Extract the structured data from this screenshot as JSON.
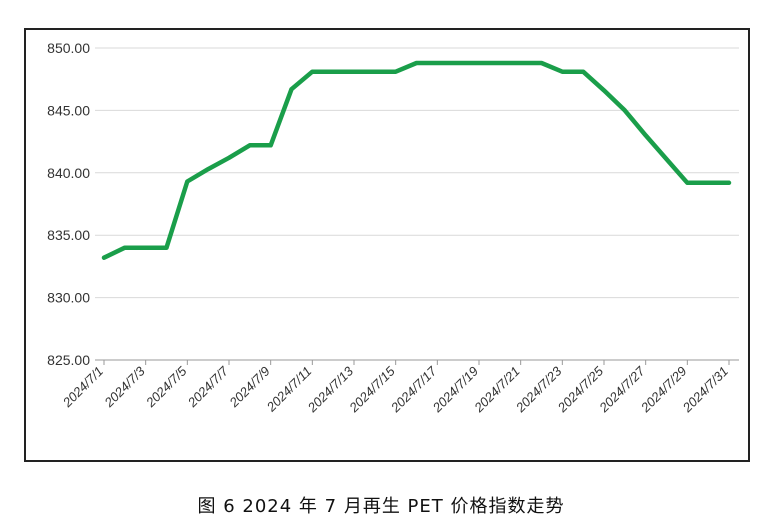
{
  "caption": "图 6  2024 年 7 月再生 PET 价格指数走势",
  "chart_data": {
    "type": "line",
    "title": "",
    "xlabel": "",
    "ylabel": "",
    "ylim": [
      825,
      850
    ],
    "yticks": [
      825,
      830,
      835,
      840,
      845,
      850
    ],
    "ytick_labels": [
      "825.00",
      "830.00",
      "835.00",
      "840.00",
      "845.00",
      "850.00"
    ],
    "grid": true,
    "line_color": "#1a9e4a",
    "categories": [
      "2024/7/1",
      "2024/7/2",
      "2024/7/3",
      "2024/7/4",
      "2024/7/5",
      "2024/7/6",
      "2024/7/7",
      "2024/7/8",
      "2024/7/9",
      "2024/7/10",
      "2024/7/11",
      "2024/7/12",
      "2024/7/13",
      "2024/7/14",
      "2024/7/15",
      "2024/7/16",
      "2024/7/17",
      "2024/7/18",
      "2024/7/19",
      "2024/7/20",
      "2024/7/21",
      "2024/7/22",
      "2024/7/23",
      "2024/7/24",
      "2024/7/25",
      "2024/7/26",
      "2024/7/27",
      "2024/7/28",
      "2024/7/29",
      "2024/7/30",
      "2024/7/31"
    ],
    "xtick_labels": [
      "2024/7/1",
      "2024/7/3",
      "2024/7/5",
      "2024/7/7",
      "2024/7/9",
      "2024/7/11",
      "2024/7/13",
      "2024/7/15",
      "2024/7/17",
      "2024/7/19",
      "2024/7/21",
      "2024/7/23",
      "2024/7/25",
      "2024/7/27",
      "2024/7/29",
      "2024/7/31"
    ],
    "series": [
      {
        "values": [
          833.2,
          834.0,
          834.0,
          834.0,
          839.3,
          840.3,
          841.2,
          842.2,
          842.2,
          846.7,
          848.1,
          848.1,
          848.1,
          848.1,
          848.1,
          848.8,
          848.8,
          848.8,
          848.8,
          848.8,
          848.8,
          848.8,
          848.1,
          848.1,
          846.6,
          845.0,
          843.0,
          841.1,
          839.2,
          839.2,
          839.2
        ]
      }
    ]
  }
}
